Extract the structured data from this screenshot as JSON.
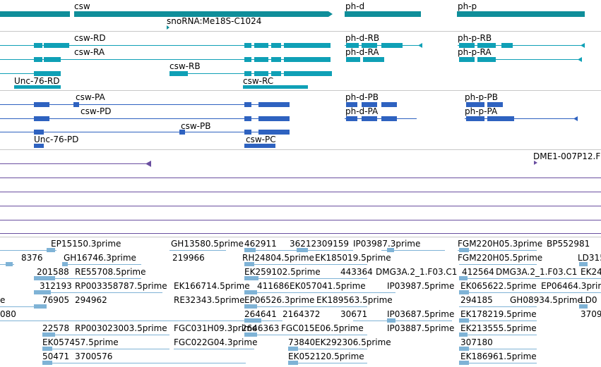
{
  "colors": {
    "gene": "#0F8E9A",
    "transcript": "#0FA0B6",
    "protein": "#2E62C0",
    "ncrna": "#6A4FA0",
    "est": "#7FB3D6",
    "separator": "#C8C8C8",
    "bg": "#FFFFFF"
  },
  "tracks": {
    "genes": {
      "labels": [
        "csw",
        "snoRNA:Me18S-C1024",
        "ph-d",
        "ph-p"
      ]
    },
    "transcripts": {
      "labels": [
        "csw-RD",
        "csw-RA",
        "csw-RB",
        "Unc-76-RD",
        "csw-RC",
        "ph-d-RB",
        "ph-d-RA",
        "ph-p-RB",
        "ph-p-RA"
      ]
    },
    "proteins": {
      "labels": [
        "csw-PA",
        "csw-PD",
        "csw-PB",
        "Unc-76-PD",
        "csw-PC",
        "ph-d-PB",
        "ph-d-PA",
        "ph-p-PB",
        "ph-p-PA"
      ]
    },
    "ncrna": {
      "labels": [
        "DME1-007P12.F"
      ]
    },
    "ests": {
      "labels": [
        "EP15150.3prime",
        "GH13580.5prime",
        "462911",
        "36212309159",
        "IP03987.3prime",
        "FGM220H05.3prime",
        "BP552981",
        "8376",
        "GH16746.3prime",
        "219966",
        "RH24804.5prime",
        "EK185019.5prime",
        "FGM220H05.5prime",
        "LD315",
        "201588",
        "RE55708.5prime",
        "EK259102.5prime",
        "443364",
        "DMG3A.2_1.F03.C1",
        "412564",
        "DMG3A.2_1.F03.C1",
        "EK24",
        "312193",
        "RP003358787.5prime",
        "EK166714.5prime",
        "411686",
        "EK057041.5prime",
        "IP03987.5prime",
        "EK065622.5prime",
        "EP06464.3prime",
        "e",
        "76905",
        "294962",
        "RE32343.5prime",
        "EP06526.3prime",
        "EK189563.5prime",
        "294185",
        "GH08934.5prime",
        "LD0",
        "080",
        "264641",
        "2164372",
        "30671",
        "IP03687.5prime",
        "EK178219.5prime",
        "3709",
        "22578",
        "RP003023003.5prime",
        "FGC031H09.3prime",
        "2646363",
        "FGC015E06.5prime",
        "IP03887.5prime",
        "EK213555.5prime",
        "EK057457.5prime",
        "FGC022G04.3prime",
        "73840",
        "EK292306.5prime",
        "307180",
        "50471",
        "3700576",
        "EK052120.5prime",
        "EK186961.5prime"
      ]
    }
  }
}
